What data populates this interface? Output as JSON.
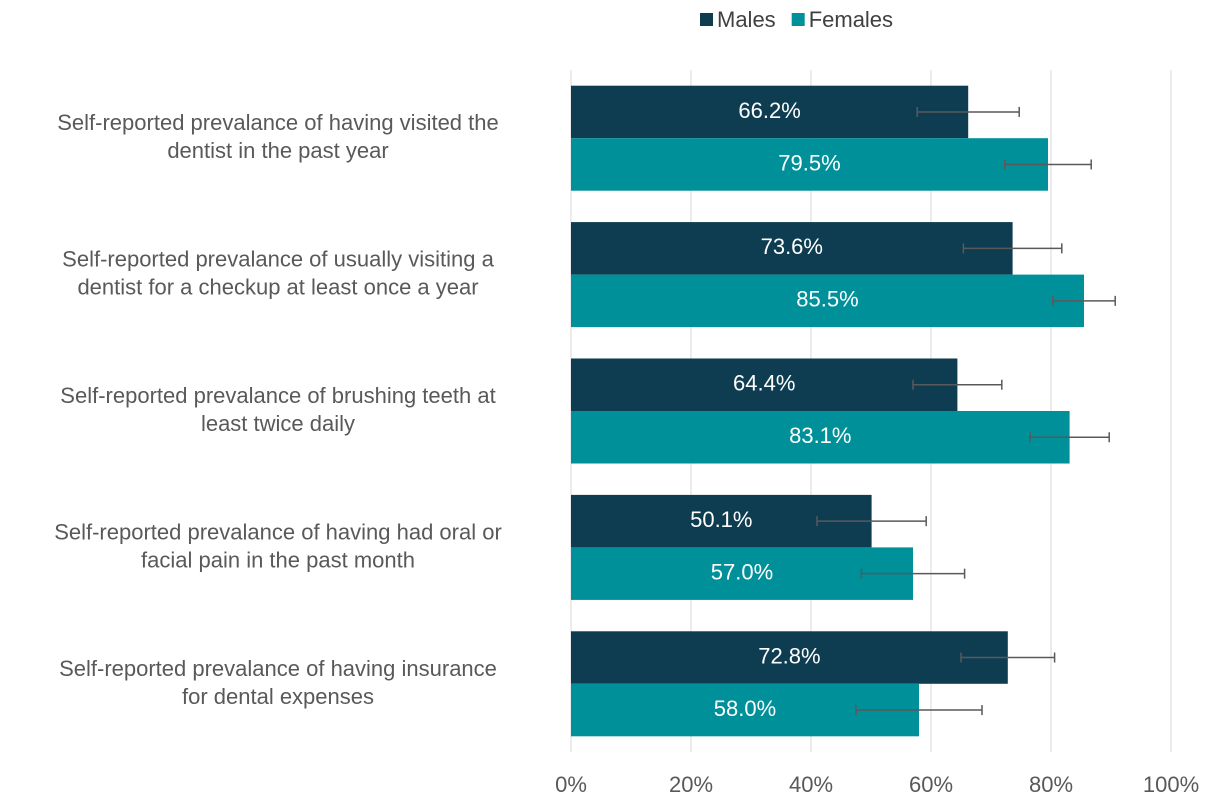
{
  "chart_data": {
    "type": "hbar",
    "categories": [
      [
        "Self-reported prevalance of having visited the",
        "dentist in the past year"
      ],
      [
        "Self-reported prevalance of usually visiting a",
        "dentist for a checkup at least once a year"
      ],
      [
        "Self-reported prevalance of brushing teeth at",
        "least twice daily"
      ],
      [
        "Self-reported prevalance of having had oral or",
        "facial pain in the past month"
      ],
      [
        "Self-reported prevalance of having insurance",
        "for dental expenses"
      ]
    ],
    "series": [
      {
        "name": "Males",
        "color": "#0e3d52",
        "values": [
          66.2,
          73.6,
          64.4,
          50.1,
          72.8
        ],
        "value_labels": [
          "66.2%",
          "73.6%",
          "64.4%",
          "50.1%",
          "72.8%"
        ],
        "errors": [
          8.5,
          8.2,
          7.4,
          9.1,
          7.8
        ]
      },
      {
        "name": "Females",
        "color": "#00909a",
        "values": [
          79.5,
          85.5,
          83.1,
          57.0,
          58.0
        ],
        "value_labels": [
          "79.5%",
          "85.5%",
          "83.1%",
          "57.0%",
          "58.0%"
        ],
        "errors": [
          7.2,
          5.2,
          6.6,
          8.6,
          10.5
        ]
      }
    ],
    "xlim": [
      0,
      100
    ],
    "xticks": [
      {
        "value": 0,
        "label": "0%"
      },
      {
        "value": 20,
        "label": "20%"
      },
      {
        "value": 40,
        "label": "40%"
      },
      {
        "value": 60,
        "label": "60%"
      },
      {
        "value": 80,
        "label": "80%"
      },
      {
        "value": 100,
        "label": "100%"
      }
    ],
    "grid": true,
    "legend": "top"
  }
}
